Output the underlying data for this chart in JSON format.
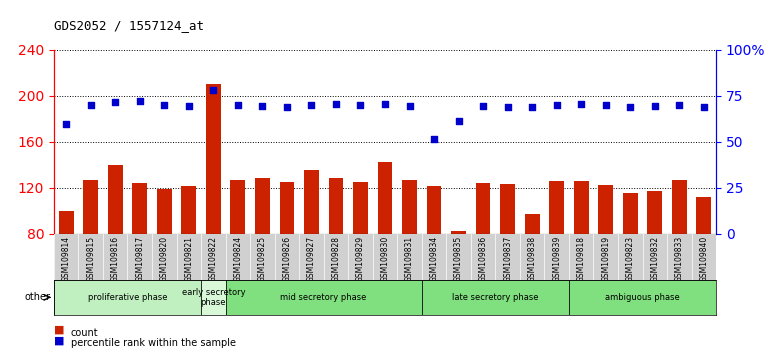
{
  "title": "GDS2052 / 1557124_at",
  "categories": [
    "GSM109814",
    "GSM109815",
    "GSM109816",
    "GSM109817",
    "GSM109820",
    "GSM109821",
    "GSM109822",
    "GSM109824",
    "GSM109825",
    "GSM109826",
    "GSM109827",
    "GSM109828",
    "GSM109829",
    "GSM109830",
    "GSM109831",
    "GSM109834",
    "GSM109835",
    "GSM109836",
    "GSM109837",
    "GSM109838",
    "GSM109839",
    "GSM109818",
    "GSM109819",
    "GSM109823",
    "GSM109832",
    "GSM109833",
    "GSM109840"
  ],
  "bar_values": [
    100,
    127,
    140,
    124,
    119,
    121,
    210,
    127,
    128,
    125,
    135,
    128,
    125,
    142,
    127,
    121,
    82,
    124,
    123,
    97,
    126,
    126,
    122,
    115,
    117,
    127,
    112
  ],
  "dot_values": [
    175,
    192,
    194,
    195,
    192,
    191,
    205,
    192,
    191,
    190,
    192,
    193,
    192,
    193,
    191,
    162,
    178,
    191,
    190,
    190,
    192,
    193,
    192,
    190,
    191,
    192,
    190
  ],
  "bar_color": "#cc2200",
  "dot_color": "#0000cc",
  "ylim_left": [
    80,
    240
  ],
  "yticks_left": [
    80,
    120,
    160,
    200,
    240
  ],
  "ylim_right": [
    0,
    100
  ],
  "yticks_right": [
    0,
    25,
    50,
    75,
    100
  ],
  "yticklabels_right": [
    "0",
    "25",
    "50",
    "75",
    "100%"
  ],
  "phase_defs": [
    {
      "label": "proliferative phase",
      "start": 0,
      "end": 6,
      "color": "#c0f0c0"
    },
    {
      "label": "early secretory\nphase",
      "start": 6,
      "end": 7,
      "color": "#d8f8d8"
    },
    {
      "label": "mid secretory phase",
      "start": 7,
      "end": 15,
      "color": "#80e080"
    },
    {
      "label": "late secretory phase",
      "start": 15,
      "end": 21,
      "color": "#80e080"
    },
    {
      "label": "ambiguous phase",
      "start": 21,
      "end": 27,
      "color": "#80e080"
    }
  ],
  "other_label": "other",
  "background_color": "#ffffff",
  "tick_bg_color": "#d0d0d0"
}
